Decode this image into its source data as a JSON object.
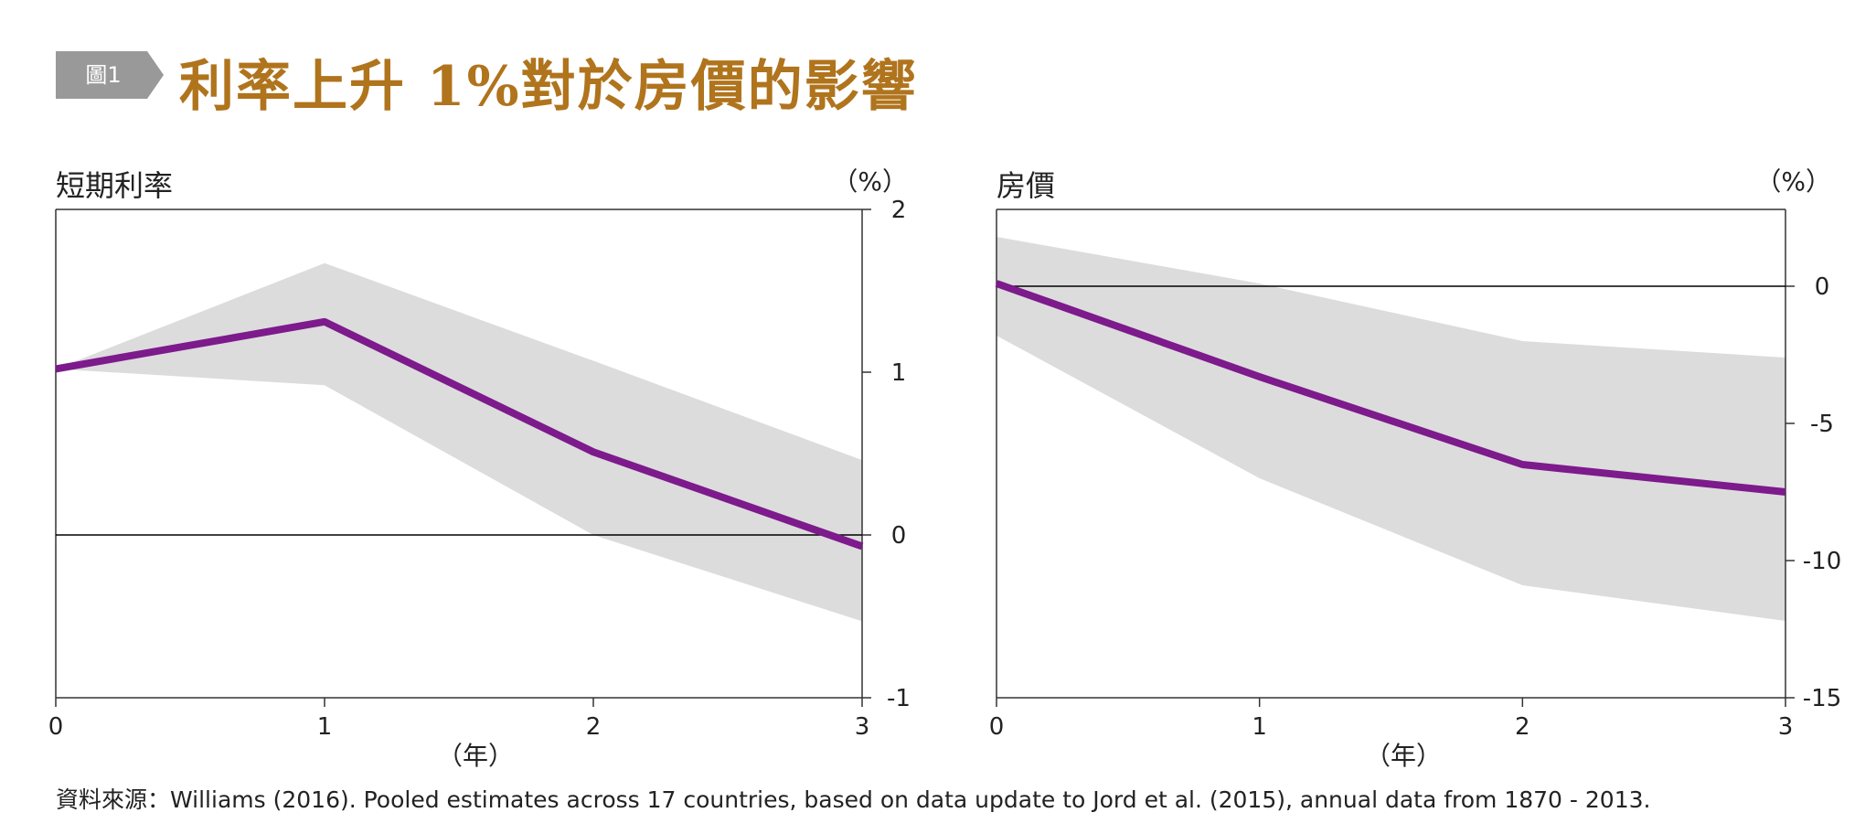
{
  "figure_label": "圖1",
  "title": "利率上升 1%對於房價的影響",
  "source": "資料來源：Williams (2016). Pooled estimates across 17 countries, based on data update to Jord    et al. (2015), annual data from 1870 - 2013.",
  "colors": {
    "line": "#7d1a8c",
    "band": "#dcdcdc",
    "title": "#b0741d",
    "tag": "#999999"
  },
  "chart_data": [
    {
      "type": "line",
      "title": "短期利率",
      "unit": "（%）",
      "xlabel": "（年）",
      "x": [
        0,
        1,
        2,
        3
      ],
      "xticks": [
        "0",
        "1",
        "2",
        "3"
      ],
      "ylim": [
        -1,
        2
      ],
      "yticks": [
        "2",
        "1",
        "0",
        "-1"
      ],
      "ytick_values": [
        2,
        1,
        0,
        -1
      ],
      "series": [
        {
          "values": [
            1.02,
            1.31,
            0.51,
            -0.07
          ]
        }
      ],
      "band": {
        "upper": [
          1.02,
          1.67,
          1.07,
          0.46
        ],
        "lower": [
          1.02,
          0.92,
          0.0,
          -0.53
        ]
      },
      "zero_line": 0,
      "axis_side": "right",
      "grid": false
    },
    {
      "type": "line",
      "title": "房價",
      "unit": "（%）",
      "xlabel": "（年）",
      "x": [
        0,
        1,
        2,
        3
      ],
      "xticks": [
        "0",
        "1",
        "2",
        "3"
      ],
      "ylim": [
        -15,
        2.8
      ],
      "yticks": [
        "0",
        "-5",
        "-10",
        "-15"
      ],
      "ytick_values": [
        0,
        -5,
        -10,
        -15
      ],
      "series": [
        {
          "values": [
            0.1,
            -3.3,
            -6.5,
            -7.5
          ]
        }
      ],
      "band": {
        "upper": [
          1.8,
          0.1,
          -2.0,
          -2.6
        ],
        "lower": [
          -1.8,
          -7.0,
          -10.9,
          -12.2
        ]
      },
      "zero_line": 0,
      "axis_side": "right",
      "grid": false
    }
  ]
}
